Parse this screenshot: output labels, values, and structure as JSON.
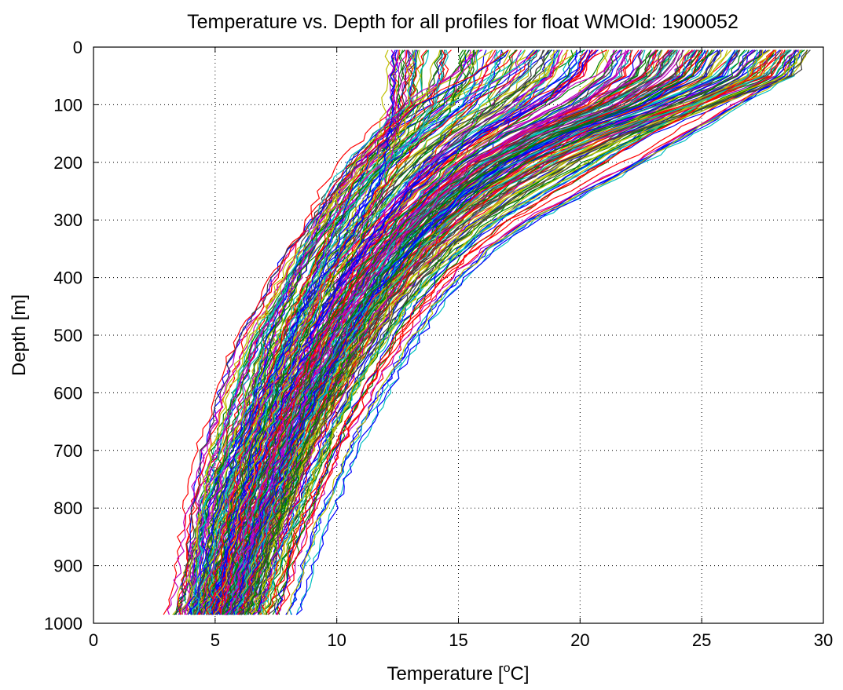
{
  "chart_data": {
    "type": "line",
    "title": "Temperature vs. Depth for all profiles for float WMOId: 1900052",
    "xlabel_text": "Temperature [",
    "xlabel_sup": "o",
    "xlabel_unit": "C]",
    "ylabel": "Depth [m]",
    "xlim": [
      0,
      30
    ],
    "ylim": [
      0,
      1000
    ],
    "y_reversed": true,
    "grid": true,
    "legend": "none",
    "x_ticks": [
      0,
      5,
      10,
      15,
      20,
      25,
      30
    ],
    "x_tick_labels": [
      "0",
      "5",
      "10",
      "15",
      "20",
      "25",
      "30"
    ],
    "y_ticks": [
      0,
      100,
      200,
      300,
      400,
      500,
      600,
      700,
      800,
      900,
      1000
    ],
    "y_tick_labels": [
      "0",
      "100",
      "200",
      "300",
      "400",
      "500",
      "600",
      "700",
      "800",
      "900",
      "1000"
    ],
    "series_colors": [
      "#0000ff",
      "#008000",
      "#ff0000",
      "#00bfbf",
      "#bf00bf",
      "#bfbf00",
      "#404040"
    ],
    "depth_levels": [
      5,
      50,
      100,
      150,
      200,
      250,
      300,
      350,
      400,
      450,
      500,
      550,
      600,
      650,
      700,
      750,
      800,
      850,
      900,
      950,
      985
    ],
    "representative_profiles": [
      {
        "t": [
          12.4,
          12.3,
          12.3,
          12.2,
          12.0,
          11.6,
          11.0,
          10.3,
          9.5,
          8.8,
          8.2,
          7.6,
          7.0,
          6.5,
          6.0,
          5.6,
          5.2,
          4.9,
          4.6,
          4.3,
          4.0
        ]
      },
      {
        "t": [
          13.2,
          13.1,
          12.9,
          11.5,
          10.4,
          9.6,
          9.0,
          8.6,
          8.1,
          7.6,
          7.1,
          6.8,
          6.6,
          6.2,
          5.6,
          5.0,
          4.6,
          4.4,
          4.3,
          4.2,
          4.2
        ]
      },
      {
        "t": [
          13.0,
          12.8,
          12.7,
          12.4,
          11.0,
          9.9,
          9.1,
          8.1,
          7.4,
          6.8,
          6.1,
          5.6,
          5.2,
          4.9,
          4.5,
          4.3,
          4.1,
          4.0,
          3.9,
          3.7,
          3.5
        ]
      },
      {
        "t": [
          17.0,
          15.5,
          13.2,
          12.0,
          11.2,
          10.5,
          9.9,
          9.3,
          8.8,
          8.3,
          7.8,
          7.4,
          7.0,
          6.6,
          6.2,
          5.9,
          5.6,
          5.3,
          5.1,
          4.9,
          4.7
        ]
      },
      {
        "t": [
          19.0,
          18.5,
          17.0,
          15.0,
          13.5,
          12.4,
          11.5,
          10.7,
          10.0,
          9.4,
          8.8,
          8.3,
          7.8,
          7.3,
          6.9,
          6.5,
          6.1,
          5.8,
          5.5,
          5.2,
          5.0
        ]
      },
      {
        "t": [
          21.5,
          21.0,
          19.5,
          17.0,
          15.0,
          13.8,
          12.8,
          11.9,
          11.1,
          10.4,
          9.8,
          9.2,
          8.7,
          8.2,
          7.7,
          7.2,
          6.8,
          6.4,
          6.0,
          5.7,
          5.4
        ]
      },
      {
        "t": [
          24.0,
          23.5,
          21.5,
          18.5,
          16.2,
          14.6,
          13.4,
          12.4,
          11.5,
          10.7,
          10.0,
          9.4,
          8.8,
          8.3,
          7.8,
          7.3,
          6.9,
          6.5,
          6.1,
          5.8,
          5.5
        ]
      },
      {
        "t": [
          26.5,
          25.8,
          23.0,
          19.5,
          17.0,
          15.3,
          14.0,
          12.9,
          12.0,
          11.2,
          10.5,
          9.8,
          9.2,
          8.6,
          8.1,
          7.6,
          7.1,
          6.7,
          6.3,
          6.0,
          5.7
        ]
      },
      {
        "t": [
          28.5,
          27.5,
          24.5,
          21.0,
          18.2,
          16.2,
          14.7,
          13.5,
          12.5,
          11.6,
          10.8,
          10.1,
          9.5,
          8.9,
          8.4,
          7.9,
          7.4,
          7.0,
          6.6,
          6.2,
          5.9
        ]
      },
      {
        "t": [
          29.5,
          28.8,
          25.5,
          22.0,
          19.2,
          17.0,
          15.3,
          14.0,
          12.9,
          12.0,
          11.2,
          10.5,
          9.8,
          9.2,
          8.6,
          8.1,
          7.6,
          7.2,
          6.8,
          6.4,
          6.1
        ]
      },
      {
        "t": [
          28.0,
          27.0,
          25.0,
          23.0,
          21.0,
          19.0,
          17.0,
          15.5,
          14.3,
          13.3,
          12.5,
          11.7,
          11.0,
          10.4,
          9.8,
          9.3,
          8.8,
          8.3,
          7.9,
          7.5,
          7.2
        ]
      },
      {
        "t": [
          29.0,
          28.5,
          26.5,
          24.5,
          22.5,
          20.3,
          18.0,
          16.3,
          15.0,
          14.0,
          13.2,
          12.5,
          11.8,
          11.1,
          10.5,
          10.0,
          9.5,
          9.0,
          8.6,
          8.3,
          8.0
        ]
      },
      {
        "t": [
          27.5,
          26.5,
          24.0,
          20.5,
          17.8,
          15.8,
          14.4,
          13.3,
          12.4,
          11.6,
          10.9,
          10.3,
          9.7,
          9.1,
          8.6,
          8.1,
          7.7,
          7.3,
          6.9,
          6.6,
          6.3
        ]
      },
      {
        "t": [
          22.0,
          21.5,
          20.0,
          17.5,
          15.5,
          14.0,
          12.9,
          12.0,
          11.1,
          10.3,
          9.6,
          9.0,
          8.4,
          7.9,
          7.4,
          7.0,
          6.6,
          6.2,
          5.9,
          5.6,
          5.3
        ]
      }
    ]
  }
}
